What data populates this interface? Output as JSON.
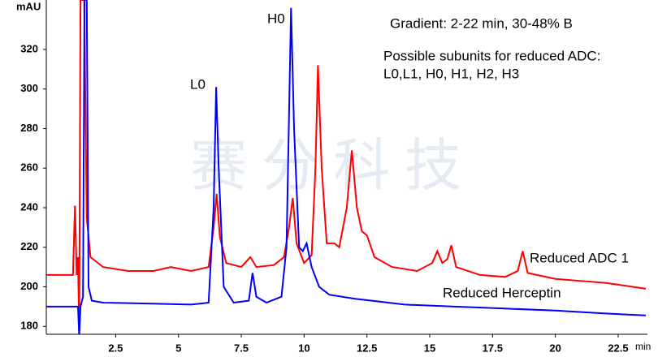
{
  "chart_data": {
    "type": "line",
    "y_label": "mAU",
    "x_label": "min",
    "watermark": "赛分科技",
    "annotations": [
      "Gradient: 2-22 min, 30-48% B",
      "Possible subunits for reduced ADC:",
      "L0,L1, H0, H1, H2, H3",
      "L0",
      "H0"
    ],
    "xlim": [
      -0.26,
      23.6
    ],
    "ylim": [
      176,
      345
    ],
    "xticks": [
      2.5,
      5,
      7.5,
      10,
      12.5,
      15,
      17.5,
      20,
      22.5
    ],
    "yticks": [
      180,
      200,
      220,
      240,
      260,
      280,
      300,
      320
    ],
    "series": [
      {
        "name": "Reduced ADC 1",
        "color": "#ff0000",
        "x": [
          -0.25,
          0.8,
          0.88,
          0.95,
          1.0,
          1.05,
          1.1,
          1.25,
          1.35,
          1.5,
          2,
          3,
          4,
          4.7,
          5.5,
          6.2,
          6.4,
          6.52,
          6.65,
          6.9,
          7.5,
          7.86,
          8.1,
          8.8,
          9.2,
          9.4,
          9.55,
          9.7,
          10.0,
          10.3,
          10.45,
          10.55,
          10.7,
          10.9,
          11.2,
          11.4,
          11.7,
          11.9,
          12.1,
          12.3,
          12.5,
          12.8,
          13.5,
          14.5,
          15.1,
          15.3,
          15.5,
          15.7,
          15.86,
          16.05,
          17,
          18,
          18.5,
          18.7,
          18.9,
          20,
          21,
          22,
          23.6
        ],
        "values": [
          206,
          206,
          241,
          206,
          215,
          176,
          345,
          345,
          235,
          215,
          210,
          208,
          208,
          210,
          208,
          210,
          230,
          247,
          225,
          212,
          210,
          215,
          210,
          211,
          215,
          230,
          245,
          222,
          212,
          216,
          260,
          312,
          260,
          222,
          222,
          220,
          240,
          269,
          240,
          228,
          226,
          215,
          210,
          208,
          212,
          218,
          212,
          214,
          221,
          210,
          206,
          205,
          208,
          218,
          207,
          204,
          203,
          202,
          199
        ]
      },
      {
        "name": "Reduced Herceptin",
        "color": "#0000ff",
        "x": [
          -0.25,
          0.9,
          1.0,
          1.05,
          1.1,
          1.2,
          1.26,
          1.35,
          1.42,
          1.55,
          2.0,
          4,
          5.5,
          6.2,
          6.4,
          6.5,
          6.6,
          6.8,
          7.2,
          7.8,
          7.95,
          8.1,
          8.5,
          9.1,
          9.3,
          9.48,
          9.6,
          9.8,
          9.95,
          10.1,
          10.3,
          10.6,
          11,
          12,
          14,
          16,
          18,
          20,
          22,
          23.6
        ],
        "values": [
          190,
          190,
          190,
          175,
          190,
          195,
          345,
          345,
          200,
          193,
          192,
          191.5,
          191,
          192,
          240,
          301,
          260,
          200,
          192,
          193,
          207,
          195,
          192,
          195,
          220,
          341,
          280,
          220,
          218,
          222,
          210,
          200,
          196,
          194,
          191,
          190,
          189,
          188,
          186.5,
          185.5
        ]
      }
    ]
  }
}
